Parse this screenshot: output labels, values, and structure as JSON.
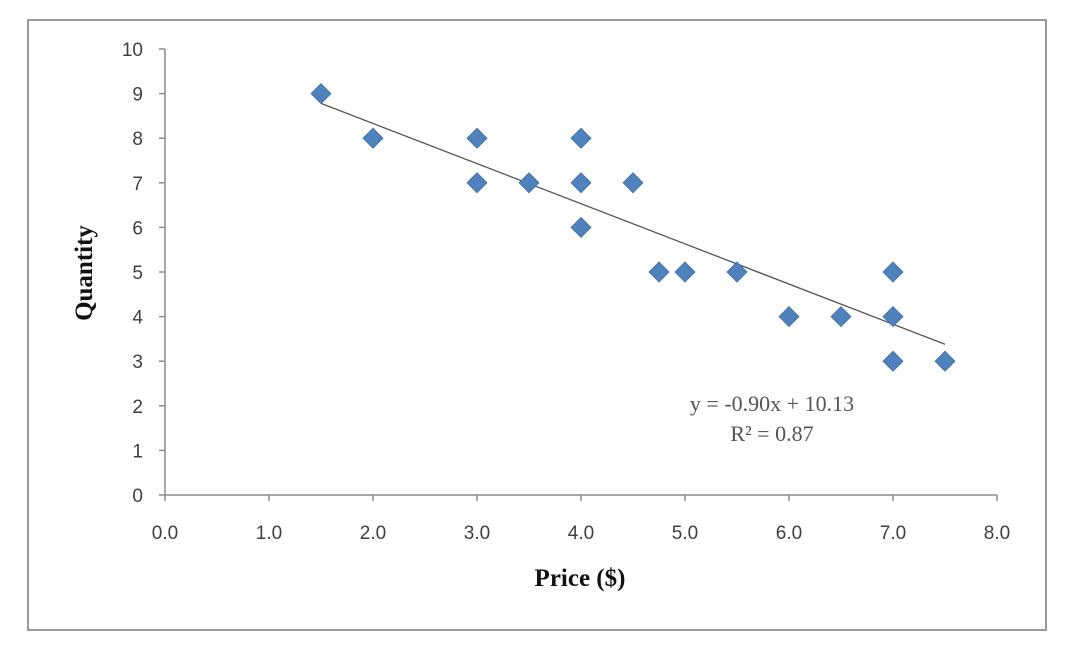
{
  "chart_data": {
    "type": "scatter",
    "title": "",
    "xlabel": "Price ($)",
    "ylabel": "Quantity",
    "xlim": [
      0,
      8
    ],
    "ylim": [
      0,
      10
    ],
    "x_ticks": [
      "0.0",
      "1.0",
      "2.0",
      "3.0",
      "4.0",
      "5.0",
      "6.0",
      "7.0",
      "8.0"
    ],
    "y_ticks": [
      "0",
      "1",
      "2",
      "3",
      "4",
      "5",
      "6",
      "7",
      "8",
      "9",
      "10"
    ],
    "grid": false,
    "legend": "none",
    "marker_color": "#4f81bd",
    "trendline_color": "#555555",
    "series": [
      {
        "points": [
          {
            "x": 1.5,
            "y": 9
          },
          {
            "x": 2.0,
            "y": 8
          },
          {
            "x": 3.0,
            "y": 8
          },
          {
            "x": 3.0,
            "y": 7
          },
          {
            "x": 3.5,
            "y": 7
          },
          {
            "x": 4.0,
            "y": 8
          },
          {
            "x": 4.0,
            "y": 7
          },
          {
            "x": 4.0,
            "y": 6
          },
          {
            "x": 4.5,
            "y": 7
          },
          {
            "x": 4.75,
            "y": 5
          },
          {
            "x": 5.0,
            "y": 5
          },
          {
            "x": 5.5,
            "y": 5
          },
          {
            "x": 6.0,
            "y": 4
          },
          {
            "x": 6.5,
            "y": 4
          },
          {
            "x": 7.0,
            "y": 5
          },
          {
            "x": 7.0,
            "y": 4
          },
          {
            "x": 7.0,
            "y": 3
          },
          {
            "x": 7.5,
            "y": 3
          }
        ]
      }
    ],
    "trendline": {
      "slope": -0.9,
      "intercept": 10.13,
      "x_range": [
        1.5,
        7.5
      ],
      "equation": "y = -0.90x + 10.13",
      "r_squared": "R² = 0.87"
    }
  }
}
